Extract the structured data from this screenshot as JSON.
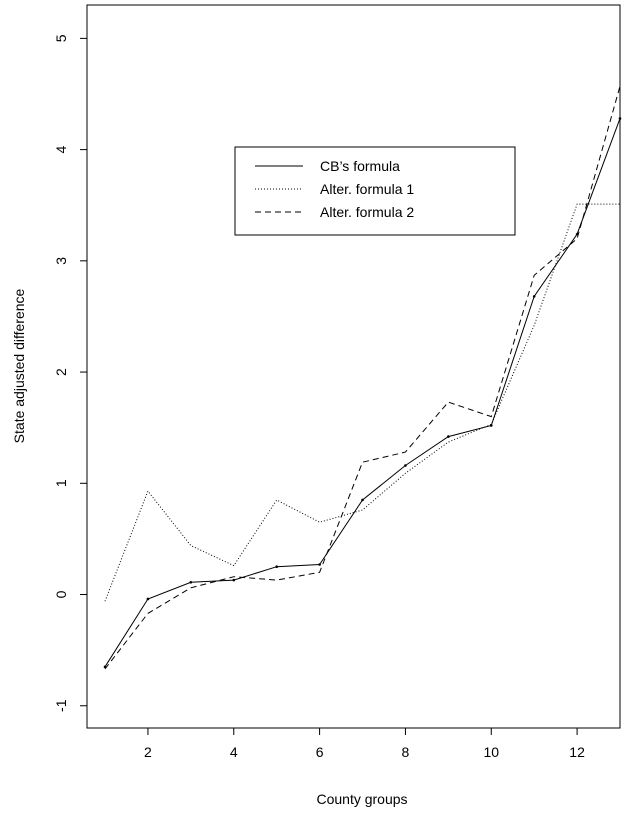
{
  "chart_data": {
    "type": "line",
    "title": "",
    "xlabel": "County groups",
    "ylabel": "State adjusted difference",
    "x": [
      1,
      2,
      3,
      4,
      5,
      6,
      7,
      8,
      9,
      10,
      11,
      12,
      13
    ],
    "xlim": [
      0.58,
      13.0
    ],
    "ylim": [
      -1.2,
      5.3
    ],
    "x_ticks": [
      "2",
      "4",
      "6",
      "8",
      "10",
      "12"
    ],
    "y_ticks": [
      "-1",
      "0",
      "1",
      "2",
      "3",
      "4",
      "5"
    ],
    "grid": false,
    "legend_position": "upper-center",
    "series": [
      {
        "name": "CB’s formula",
        "line_style": "solid",
        "values": [
          -0.65,
          -0.04,
          0.11,
          0.13,
          0.25,
          0.27,
          0.85,
          1.16,
          1.42,
          1.52,
          2.68,
          3.24,
          4.28
        ]
      },
      {
        "name": "Alter. formula 1",
        "line_style": "dotted",
        "values": [
          -0.06,
          0.93,
          0.44,
          0.26,
          0.85,
          0.65,
          0.76,
          1.09,
          1.37,
          1.53,
          2.42,
          3.51,
          3.51
        ]
      },
      {
        "name": "Alter. formula 2",
        "line_style": "dashed",
        "values": [
          -0.67,
          -0.17,
          0.06,
          0.16,
          0.13,
          0.2,
          1.19,
          1.28,
          1.73,
          1.6,
          2.87,
          3.2,
          4.57
        ]
      }
    ]
  }
}
